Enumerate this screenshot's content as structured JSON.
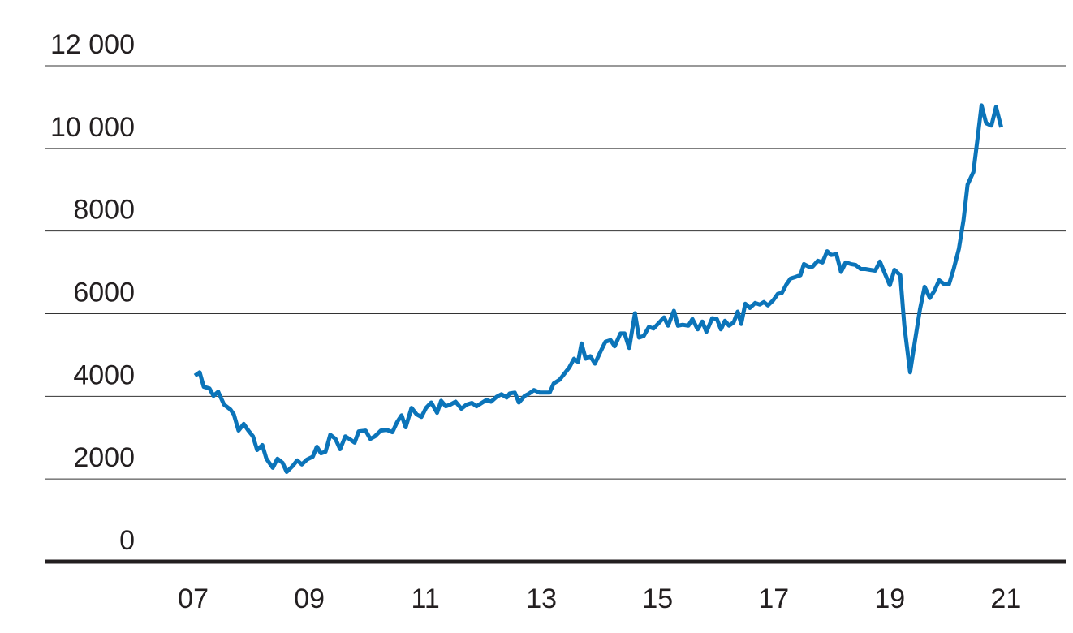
{
  "chart_data": {
    "type": "line",
    "x": [
      2007.03,
      2007.11,
      2007.18,
      2007.28,
      2007.35,
      2007.43,
      2007.53,
      2007.64,
      2007.7,
      2007.78,
      2007.87,
      2007.95,
      2008.03,
      2008.1,
      2008.19,
      2008.26,
      2008.37,
      2008.45,
      2008.54,
      2008.61,
      2008.71,
      2008.79,
      2008.87,
      2008.96,
      2009.06,
      2009.13,
      2009.2,
      2009.28,
      2009.36,
      2009.45,
      2009.53,
      2009.62,
      2009.71,
      2009.78,
      2009.85,
      2009.97,
      2010.05,
      2010.13,
      2010.23,
      2010.33,
      2010.43,
      2010.51,
      2010.59,
      2010.66,
      2010.76,
      2010.85,
      2010.93,
      2011.01,
      2011.1,
      2011.2,
      2011.27,
      2011.35,
      2011.43,
      2011.52,
      2011.62,
      2011.71,
      2011.8,
      2011.88,
      2011.97,
      2012.05,
      2012.13,
      2012.23,
      2012.31,
      2012.4,
      2012.45,
      2012.54,
      2012.61,
      2012.71,
      2012.79,
      2012.87,
      2012.97,
      2013.06,
      2013.14,
      2013.21,
      2013.31,
      2013.39,
      2013.48,
      2013.56,
      2013.63,
      2013.69,
      2013.76,
      2013.84,
      2013.92,
      2014.02,
      2014.1,
      2014.19,
      2014.26,
      2014.36,
      2014.43,
      2014.51,
      2014.61,
      2014.68,
      2014.76,
      2014.85,
      2014.93,
      2015.03,
      2015.11,
      2015.18,
      2015.28,
      2015.35,
      2015.43,
      2015.53,
      2015.6,
      2015.69,
      2015.77,
      2015.84,
      2015.94,
      2016.02,
      2016.09,
      2016.16,
      2016.23,
      2016.31,
      2016.38,
      2016.44,
      2016.51,
      2016.59,
      2016.68,
      2016.76,
      2016.83,
      2016.9,
      2016.99,
      2017.07,
      2017.14,
      2017.22,
      2017.29,
      2017.38,
      2017.46,
      2017.52,
      2017.6,
      2017.67,
      2017.76,
      2017.84,
      2017.92,
      2017.99,
      2018.08,
      2018.16,
      2018.24,
      2018.33,
      2018.41,
      2018.5,
      2018.58,
      2018.66,
      2018.75,
      2018.83,
      2018.92,
      2019.0,
      2019.08,
      2019.18,
      2019.25,
      2019.35,
      2019.43,
      2019.52,
      2019.6,
      2019.69,
      2019.77,
      2019.85,
      2019.94,
      2020.02,
      2020.1,
      2020.19,
      2020.27,
      2020.34,
      2020.44,
      2020.51,
      2020.58,
      2020.66,
      2020.75,
      2020.83,
      2020.92
    ],
    "series": [
      {
        "color": "#0b74b9",
        "values": [
          4500,
          4580,
          4230,
          4190,
          4010,
          4110,
          3800,
          3680,
          3560,
          3170,
          3330,
          3170,
          3030,
          2700,
          2820,
          2490,
          2270,
          2490,
          2390,
          2170,
          2310,
          2450,
          2350,
          2470,
          2540,
          2780,
          2620,
          2660,
          3070,
          2970,
          2720,
          3030,
          2950,
          2880,
          3150,
          3170,
          2970,
          3030,
          3170,
          3190,
          3130,
          3370,
          3540,
          3250,
          3720,
          3560,
          3500,
          3720,
          3850,
          3600,
          3890,
          3760,
          3800,
          3870,
          3700,
          3800,
          3840,
          3760,
          3840,
          3910,
          3870,
          3990,
          4050,
          3970,
          4070,
          4090,
          3850,
          4010,
          4070,
          4150,
          4090,
          4090,
          4090,
          4310,
          4400,
          4540,
          4700,
          4910,
          4830,
          5280,
          4910,
          4970,
          4790,
          5090,
          5320,
          5360,
          5210,
          5520,
          5520,
          5170,
          6010,
          5420,
          5460,
          5680,
          5640,
          5790,
          5910,
          5710,
          6070,
          5710,
          5730,
          5710,
          5870,
          5620,
          5810,
          5560,
          5890,
          5870,
          5620,
          5830,
          5710,
          5790,
          6050,
          5750,
          6240,
          6140,
          6260,
          6220,
          6280,
          6200,
          6320,
          6480,
          6500,
          6710,
          6850,
          6890,
          6930,
          7200,
          7140,
          7140,
          7280,
          7240,
          7510,
          7420,
          7440,
          7010,
          7240,
          7200,
          7180,
          7080,
          7080,
          7060,
          7040,
          7260,
          6950,
          6690,
          7060,
          6930,
          5710,
          4580,
          5320,
          6110,
          6650,
          6380,
          6560,
          6810,
          6710,
          6710,
          7080,
          7570,
          8260,
          9120,
          9430,
          10220,
          11040,
          10610,
          10550,
          11000,
          10510
        ]
      }
    ],
    "xlim": [
      2004.44,
      2022.03
    ],
    "xticks": [
      {
        "value": 2007,
        "label": "07"
      },
      {
        "value": 2009,
        "label": "09"
      },
      {
        "value": 2011,
        "label": "11"
      },
      {
        "value": 2013,
        "label": "13"
      },
      {
        "value": 2015,
        "label": "15"
      },
      {
        "value": 2017,
        "label": "17"
      },
      {
        "value": 2019,
        "label": "19"
      },
      {
        "value": 2021,
        "label": "21"
      }
    ],
    "ylim": [
      0,
      12000
    ],
    "yticks": [
      0,
      2000,
      4000,
      6000,
      8000,
      {
        "value": 10000,
        "label": "10 000"
      },
      {
        "value": 12000,
        "label": "12 000"
      }
    ],
    "grid": true
  }
}
